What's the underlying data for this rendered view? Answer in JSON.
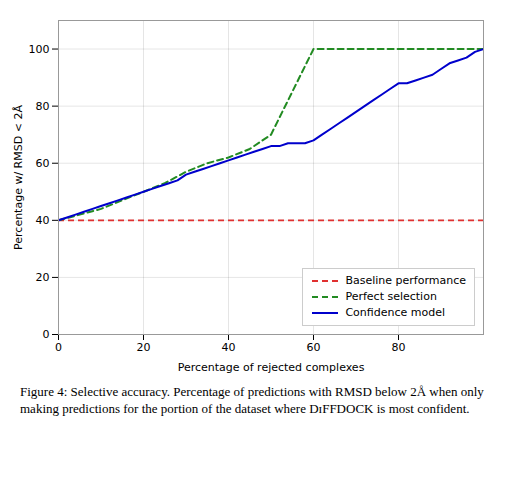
{
  "chart_data": {
    "type": "line",
    "xlabel": "Percentage of rejected complexes",
    "ylabel": "Percentage w/ RMSD < 2Å",
    "xlim": [
      0,
      100
    ],
    "ylim": [
      0,
      110
    ],
    "xticks": [
      0,
      20,
      40,
      60,
      80
    ],
    "yticks": [
      0,
      20,
      40,
      60,
      80,
      100
    ],
    "grid": true,
    "legend": "lower right",
    "caption": "Figure 4: Selective accuracy. Percentage of predictions with RMSD below 2Å when only making predictions for the portion of the dataset where DɪFFDOCK is most confident.",
    "series": [
      {
        "name": "Baseline performance",
        "type": "hline",
        "color": "#e03030",
        "line_style": "dashed",
        "values": [
          40.0
        ]
      },
      {
        "name": "Perfect selection",
        "type": "line",
        "color": "#228B22",
        "line_style": "dashed",
        "x": [
          0,
          5,
          10,
          15,
          20,
          25,
          30,
          35,
          40,
          45,
          50,
          55,
          60,
          65,
          70,
          75,
          80,
          85,
          90,
          95,
          100
        ],
        "values": [
          40,
          42,
          44,
          47,
          50,
          53,
          57,
          60,
          62,
          65,
          70,
          85,
          100,
          100,
          100,
          100,
          100,
          100,
          100,
          100,
          100
        ]
      },
      {
        "name": "Confidence model",
        "type": "line",
        "color": "#0000cc",
        "line_style": "solid",
        "x": [
          0,
          2,
          4,
          6,
          8,
          10,
          12,
          14,
          16,
          18,
          20,
          22,
          24,
          26,
          28,
          30,
          32,
          34,
          36,
          38,
          40,
          42,
          44,
          46,
          48,
          50,
          52,
          54,
          56,
          58,
          60,
          62,
          64,
          66,
          68,
          70,
          72,
          74,
          76,
          78,
          80,
          82,
          84,
          86,
          88,
          90,
          92,
          94,
          96,
          98,
          100
        ],
        "values": [
          40,
          41,
          42,
          43,
          44,
          45,
          46,
          47,
          48,
          49,
          50,
          51,
          52,
          53,
          54,
          56,
          57,
          58,
          59,
          60,
          61,
          62,
          63,
          64,
          65,
          66,
          66,
          67,
          67,
          67,
          68,
          70,
          72,
          74,
          76,
          78,
          80,
          82,
          84,
          86,
          88,
          88,
          89,
          90,
          91,
          93,
          95,
          96,
          97,
          99,
          100
        ]
      }
    ]
  }
}
